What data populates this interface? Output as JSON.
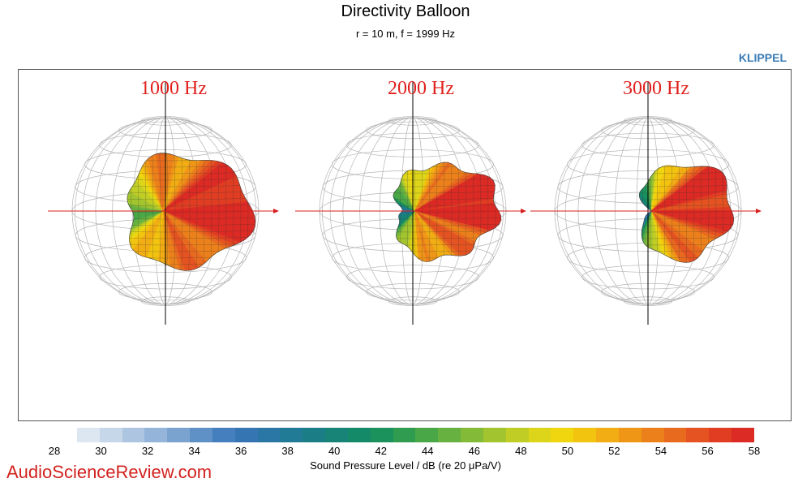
{
  "header": {
    "title": "Directivity Balloon",
    "subtitle": "r = 10 m, f =  1999 Hz",
    "brand": "KLIPPEL"
  },
  "chart_data": {
    "type": "balloon",
    "panels": [
      {
        "label": "1000 Hz"
      },
      {
        "label": "2000 Hz"
      },
      {
        "label": "3000 Hz"
      }
    ],
    "colorbar": {
      "label": "Sound Pressure Level / dB (re 20 μPa/V)",
      "range": [
        28,
        58
      ],
      "step_db": 1,
      "ticks": [
        "28",
        "30",
        "32",
        "34",
        "36",
        "38",
        "40",
        "42",
        "44",
        "46",
        "48",
        "50",
        "52",
        "54",
        "56",
        "58"
      ],
      "colors": [
        "#dde7f1",
        "#c7d7ea",
        "#aec5e1",
        "#94b5d9",
        "#7aa3d0",
        "#5f90c6",
        "#457fbd",
        "#3576b2",
        "#2a77a5",
        "#217a96",
        "#1b7e87",
        "#188377",
        "#158a69",
        "#1b915c",
        "#2f9c50",
        "#4aa747",
        "#66b13f",
        "#83ba37",
        "#a2c42e",
        "#c0cd25",
        "#dcd51a",
        "#f0d60f",
        "#f2c30f",
        "#f1ad13",
        "#f09617",
        "#ec801b",
        "#e86a1f",
        "#e45321",
        "#e03d23",
        "#dc2a24"
      ]
    }
  },
  "footer": {
    "watermark": "AudioScienceReview.com"
  }
}
